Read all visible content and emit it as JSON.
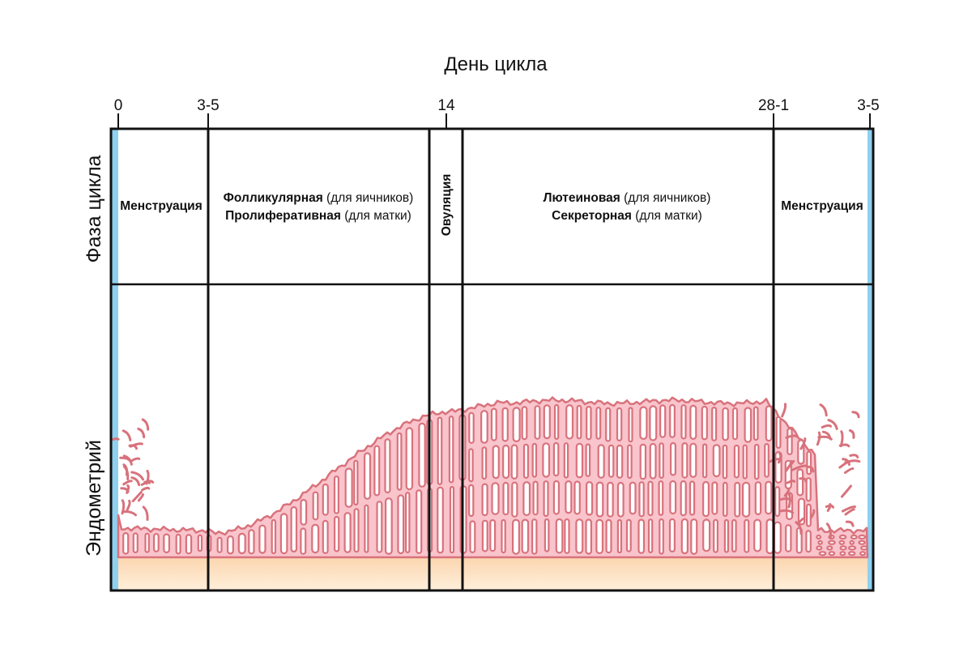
{
  "header": {
    "title": "День цикла"
  },
  "ticks": [
    {
      "label": "0",
      "day": 0
    },
    {
      "label": "3-5",
      "day": 4
    },
    {
      "label": "14",
      "day": 14
    },
    {
      "label": "28-1",
      "day": 28
    },
    {
      "label": "3-5",
      "day": 32
    }
  ],
  "row_labels": {
    "phase": "Фаза цикла",
    "endometrium": "Эндометрий"
  },
  "phases": {
    "menstruation_1": "Менструация",
    "follicular_bold": "Фолликулярная",
    "follicular_note": " (для яичников)",
    "proliferative_bold": "Пролиферативная",
    "proliferative_note": " (для матки)",
    "ovulation": "Овуляция",
    "luteal_bold": "Лютеиновая",
    "luteal_note": " (для яичников)",
    "secretory_bold": "Секреторная",
    "secretory_note": " (для матки)",
    "menstruation_2": "Менструация"
  },
  "colors": {
    "frame": "#111111",
    "edge": "#8fd0ee",
    "base_top": "#fbd4ad",
    "base_bottom": "#fff0dc",
    "tissue_fill": "#f9c4cc",
    "tissue_stroke": "#d8727c"
  }
}
